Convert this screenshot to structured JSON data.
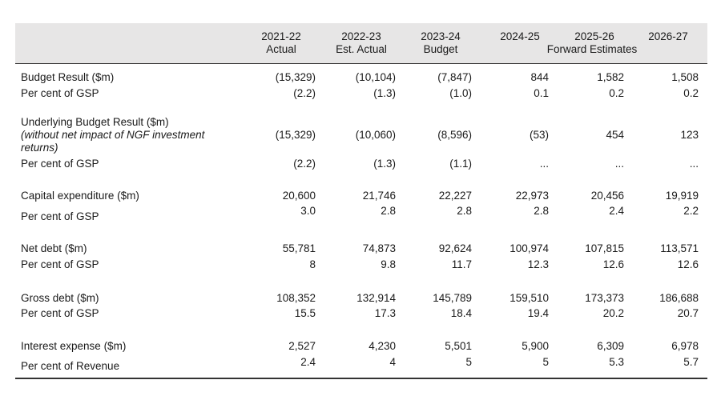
{
  "header": {
    "years": [
      "2021-22",
      "2022-23",
      "2023-24",
      "2024-25",
      "2025-26",
      "2026-27"
    ],
    "types": [
      "Actual",
      "Est. Actual",
      "Budget"
    ],
    "forward": "Forward Estimates"
  },
  "rows": {
    "budget_result": {
      "label": "Budget Result ($m)",
      "values": [
        "(15,329)",
        "(10,104)",
        "(7,847)",
        "844",
        "1,582",
        "1,508"
      ]
    },
    "budget_result_pct": {
      "label": "Per cent of GSP",
      "values": [
        "(2.2)",
        "(1.3)",
        "(1.0)",
        "0.1",
        "0.2",
        "0.2"
      ]
    },
    "underlying": {
      "label": "Underlying Budget Result ($m)",
      "note": "(without net impact of NGF investment returns)",
      "values": [
        "(15,329)",
        "(10,060)",
        "(8,596)",
        "(53)",
        "454",
        "123"
      ]
    },
    "underlying_pct": {
      "label": "Per cent of GSP",
      "values": [
        "(2.2)",
        "(1.3)",
        "(1.1)",
        "...",
        "...",
        "..."
      ]
    },
    "capex": {
      "label": "Capital expenditure ($m)",
      "values": [
        "20,600",
        "21,746",
        "22,227",
        "22,973",
        "20,456",
        "19,919"
      ]
    },
    "capex_pct": {
      "label": "Per cent of GSP",
      "values": [
        "3.0",
        "2.8",
        "2.8",
        "2.8",
        "2.4",
        "2.2"
      ]
    },
    "net_debt": {
      "label": "Net debt ($m)",
      "values": [
        "55,781",
        "74,873",
        "92,624",
        "100,974",
        "107,815",
        "113,571"
      ]
    },
    "net_debt_pct": {
      "label": "Per cent of GSP",
      "values": [
        "8",
        "9.8",
        "11.7",
        "12.3",
        "12.6",
        "12.6"
      ]
    },
    "gross_debt": {
      "label": "Gross debt ($m)",
      "values": [
        "108,352",
        "132,914",
        "145,789",
        "159,510",
        "173,373",
        "186,688"
      ]
    },
    "gross_debt_pct": {
      "label": "Per cent of GSP",
      "values": [
        "15.5",
        "17.3",
        "18.4",
        "19.4",
        "20.2",
        "20.7"
      ]
    },
    "interest": {
      "label": "Interest expense ($m)",
      "values": [
        "2,527",
        "4,230",
        "5,501",
        "5,900",
        "6,309",
        "6,978"
      ]
    },
    "interest_pct": {
      "label": "Per cent of Revenue",
      "values": [
        "2.4",
        "4",
        "5",
        "5",
        "5.3",
        "5.7"
      ]
    }
  }
}
